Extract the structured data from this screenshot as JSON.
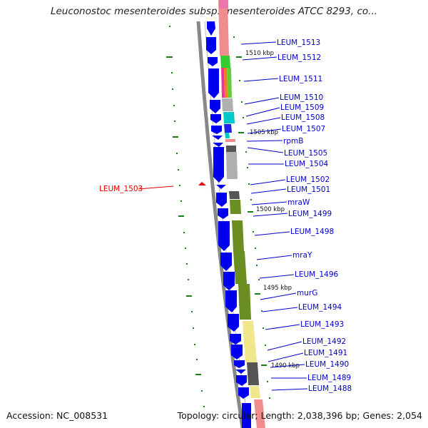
{
  "title": "Leuconostoc mesenteroides subsp. mesenteroides ATCC 8293, co...",
  "footer": {
    "accession": "Accession: NC_008531",
    "stats": "Topology: circular; Length: 2,038,396 bp; Genes: 2,054"
  },
  "scale_labels": [
    "1510 kbp",
    "1505 kbp",
    "1500 kbp",
    "1495 kbp",
    "1490 kbp"
  ],
  "gene_labels": [
    "LEUM_1513",
    "LEUM_1512",
    "LEUM_1511",
    "LEUM_1510",
    "LEUM_1509",
    "LEUM_1508",
    "LEUM_1507",
    "rpmB",
    "LEUM_1505",
    "LEUM_1504",
    "LEUM_1502",
    "LEUM_1501",
    "mraW",
    "LEUM_1499",
    "LEUM_1498",
    "mraY",
    "LEUM_1496",
    "murG",
    "LEUM_1494",
    "LEUM_1493",
    "LEUM_1492",
    "LEUM_1491",
    "LEUM_1490",
    "LEUM_1489",
    "LEUM_1488"
  ],
  "highlight_gene": "LEUM_1503",
  "colors": {
    "strand_genes": "#0000ee",
    "label_blue": "#0000cc",
    "highlight_red": "#dd0000",
    "backbone": "#808080",
    "scale_ticks": "#1a7f1a",
    "cog_lightgreen": "#66cc33",
    "cog_olive": "#6b8e23",
    "cog_yellow": "#f0e68c",
    "cog_gray": "#a9a9a9",
    "cog_darkgray": "#5a5a5a",
    "cog_pink": "#f4a0a0",
    "cog_cyan": "#00c8c8"
  }
}
